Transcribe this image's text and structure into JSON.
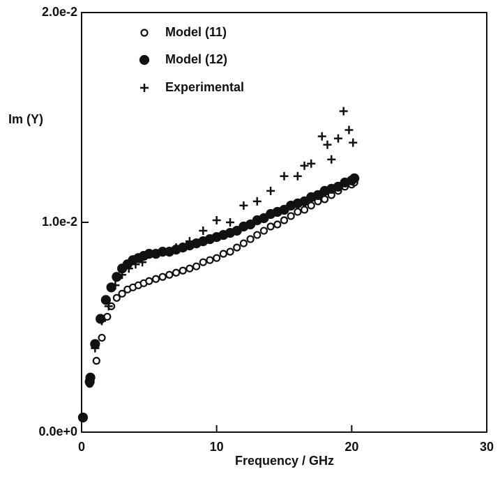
{
  "chart_data": {
    "type": "scatter",
    "xlabel": "Frequency / GHz",
    "ylabel": "Im (Y)",
    "xlim": [
      0,
      30
    ],
    "xticks": [
      0,
      10,
      20,
      30
    ],
    "ylim": [
      0,
      0.02
    ],
    "yticks": [
      {
        "value": 0,
        "label": "0.0e+0"
      },
      {
        "value": 0.01,
        "label": "1.0e-2"
      },
      {
        "value": 0.02,
        "label": "2.0e-2"
      }
    ],
    "legend": "upper left",
    "series": [
      {
        "name": "Model (11)",
        "color": "#111111",
        "marker": "open-circle",
        "x": [
          0.1,
          0.6,
          0.65,
          1.1,
          1.5,
          1.9,
          2.2,
          2.6,
          3.0,
          3.4,
          3.8,
          4.2,
          4.6,
          5.0,
          5.5,
          6,
          6.5,
          7,
          7.5,
          8,
          8.5,
          9,
          9.5,
          10,
          10.5,
          11,
          11.5,
          12,
          12.5,
          13,
          13.5,
          14,
          14.5,
          15,
          15.5,
          16,
          16.5,
          17,
          17.5,
          18,
          18.5,
          19,
          19.5,
          20,
          20.2
        ],
        "values": [
          0.0007,
          0.0023,
          0.0025,
          0.0034,
          0.0045,
          0.0055,
          0.006,
          0.0064,
          0.0066,
          0.0068,
          0.0069,
          0.007,
          0.0071,
          0.0072,
          0.0073,
          0.0074,
          0.0075,
          0.0076,
          0.0077,
          0.0078,
          0.0079,
          0.0081,
          0.0082,
          0.0083,
          0.0085,
          0.0086,
          0.0088,
          0.009,
          0.0092,
          0.0094,
          0.0096,
          0.0098,
          0.0099,
          0.0101,
          0.0103,
          0.0105,
          0.0106,
          0.0108,
          0.011,
          0.0111,
          0.0113,
          0.0115,
          0.0117,
          0.0118,
          0.0119
        ]
      },
      {
        "name": "Model (12)",
        "color": "#111111",
        "marker": "filled-circle",
        "x": [
          0.1,
          0.6,
          0.65,
          1.0,
          1.4,
          1.8,
          2.2,
          2.6,
          3.0,
          3.4,
          3.8,
          4.2,
          4.6,
          5.0,
          5.5,
          6,
          6.5,
          7,
          7.5,
          8,
          8.5,
          9,
          9.5,
          10,
          10.5,
          11,
          11.5,
          12,
          12.5,
          13,
          13.5,
          14,
          14.5,
          15,
          15.5,
          16,
          16.5,
          17,
          17.5,
          18,
          18.5,
          19,
          19.5,
          20,
          20.2
        ],
        "values": [
          0.0007,
          0.0024,
          0.0026,
          0.0042,
          0.0054,
          0.0063,
          0.0069,
          0.0074,
          0.0078,
          0.008,
          0.0082,
          0.0083,
          0.0084,
          0.0085,
          0.0085,
          0.0086,
          0.0086,
          0.0087,
          0.0088,
          0.0089,
          0.009,
          0.0091,
          0.0092,
          0.0093,
          0.0094,
          0.0095,
          0.0096,
          0.0098,
          0.0099,
          0.0101,
          0.0102,
          0.0104,
          0.0105,
          0.0106,
          0.0108,
          0.0109,
          0.011,
          0.0112,
          0.0113,
          0.0115,
          0.0116,
          0.0117,
          0.0119,
          0.012,
          0.0121
        ]
      },
      {
        "name": "Experimental",
        "color": "#111111",
        "marker": "plus",
        "x": [
          1,
          1.5,
          2,
          2.5,
          3,
          3.5,
          4,
          4.5,
          5,
          6,
          7,
          8,
          9,
          10,
          11,
          12,
          13,
          14,
          15,
          16,
          16.5,
          17,
          17.8,
          18.2,
          18.5,
          19,
          19.4,
          19.8,
          20.1
        ],
        "values": [
          0.004,
          0.0053,
          0.006,
          0.007,
          0.0075,
          0.0078,
          0.008,
          0.0081,
          0.0085,
          0.0086,
          0.0088,
          0.0091,
          0.0096,
          0.0101,
          0.01,
          0.0108,
          0.011,
          0.0115,
          0.0122,
          0.0122,
          0.0127,
          0.0128,
          0.0141,
          0.0137,
          0.013,
          0.014,
          0.0153,
          0.0144,
          0.0138
        ]
      }
    ]
  }
}
